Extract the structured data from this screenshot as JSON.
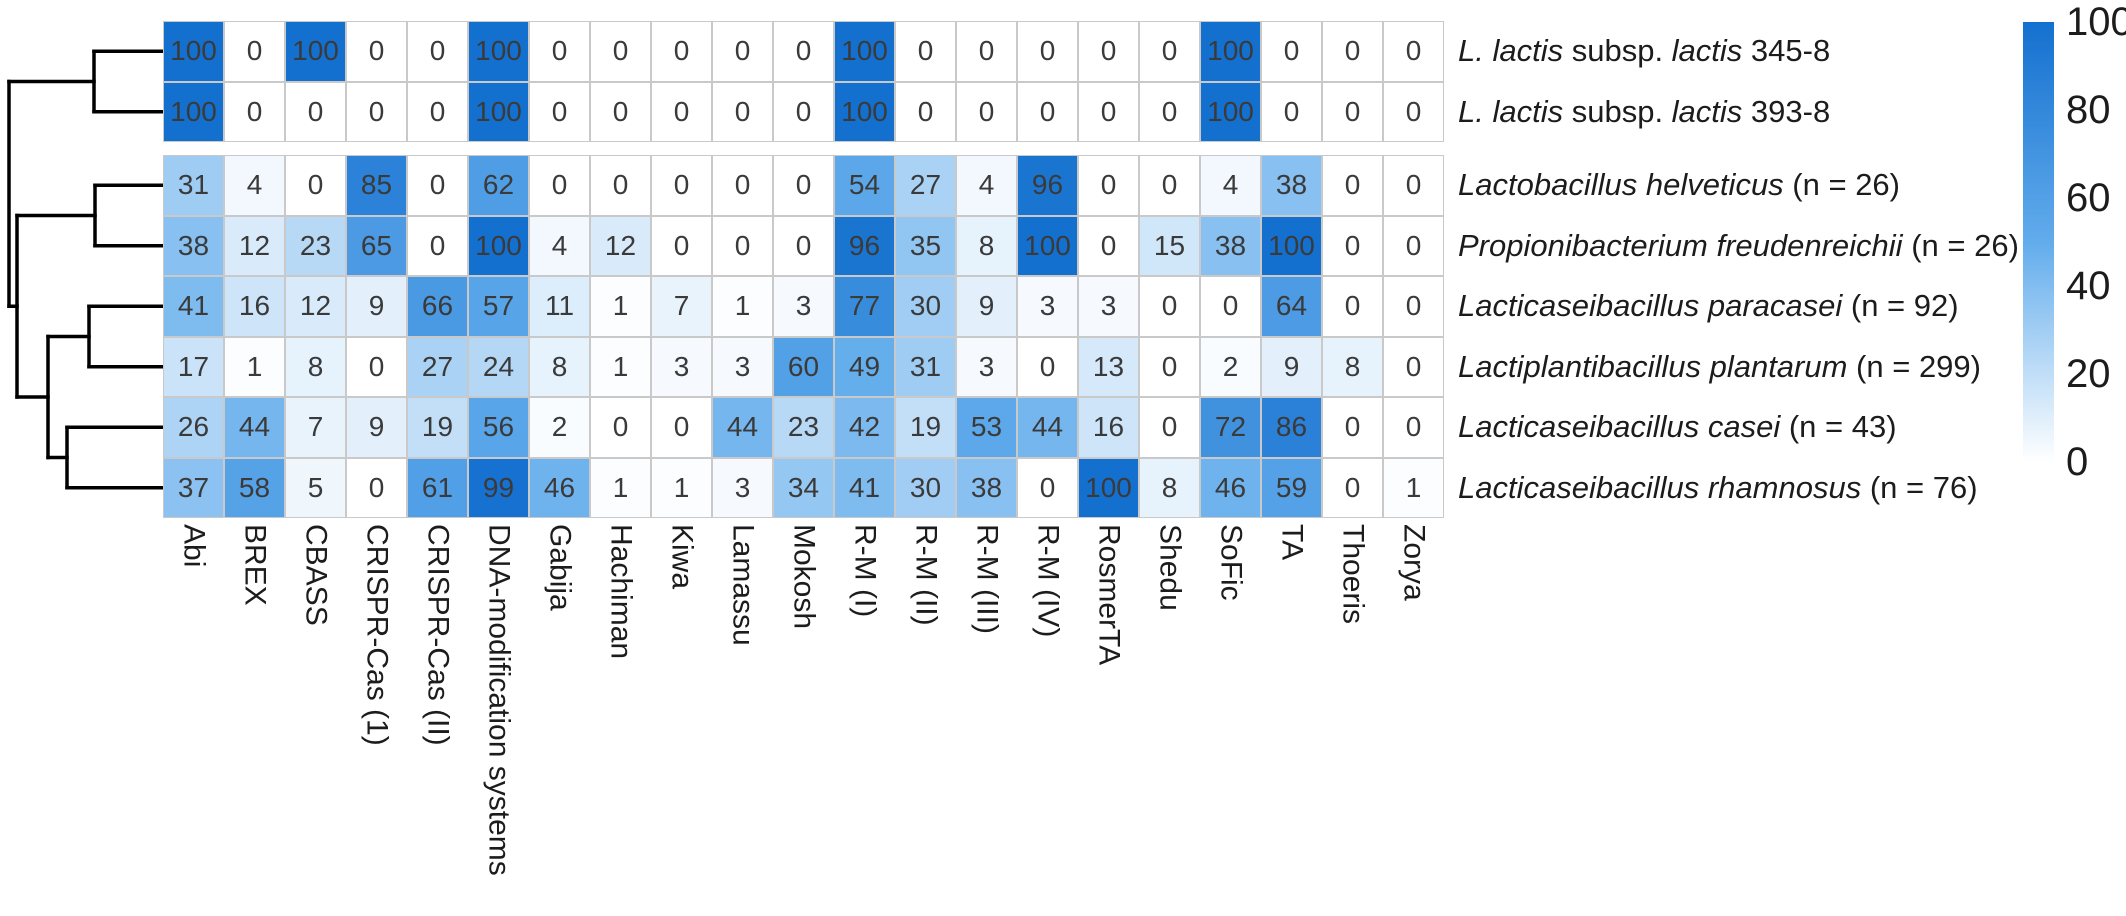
{
  "chart_data": {
    "type": "heatmap",
    "title": "",
    "legend": {
      "position": "right",
      "ticks": [
        100,
        80,
        60,
        40,
        20,
        0
      ],
      "min": 0,
      "max": 100
    },
    "colorscale": {
      "min": 0,
      "max": 100,
      "stops": [
        {
          "v": 0,
          "c": "#ffffff"
        },
        {
          "v": 50,
          "c": "#62acec"
        },
        {
          "v": 100,
          "c": "#1470cf"
        }
      ]
    },
    "columns": [
      "Abi",
      "BREX",
      "CBASS",
      "CRISPR-Cas (1)",
      "CRISPR-Cas (II)",
      "DNA-modification systems",
      "Gabija",
      "Hachiman",
      "Kiwa",
      "Lamassu",
      "Mokosh",
      "R-M (I)",
      "R-M (II)",
      "R-M (III)",
      "R-M (IV)",
      "RosmerTA",
      "Shedu",
      "SoFic",
      "TA",
      "Thoeris",
      "Zorya"
    ],
    "rows": [
      {
        "group": 0,
        "label_segments": [
          {
            "t": "L. lactis",
            "i": true
          },
          {
            "t": " subsp. ",
            "i": false
          },
          {
            "t": "lactis",
            "i": true
          },
          {
            "t": " 345-8",
            "i": false
          }
        ],
        "values": [
          100,
          0,
          100,
          0,
          0,
          100,
          0,
          0,
          0,
          0,
          0,
          100,
          0,
          0,
          0,
          0,
          0,
          100,
          0,
          0,
          0
        ]
      },
      {
        "group": 0,
        "label_segments": [
          {
            "t": "L. lactis",
            "i": true
          },
          {
            "t": " subsp. ",
            "i": false
          },
          {
            "t": "lactis",
            "i": true
          },
          {
            "t": " 393-8",
            "i": false
          }
        ],
        "values": [
          100,
          0,
          0,
          0,
          0,
          100,
          0,
          0,
          0,
          0,
          0,
          100,
          0,
          0,
          0,
          0,
          0,
          100,
          0,
          0,
          0
        ]
      },
      {
        "group": 1,
        "label_segments": [
          {
            "t": "Lactobacillus helveticus",
            "i": true
          },
          {
            "t": " (n = 26)",
            "i": false
          }
        ],
        "values": [
          31,
          4,
          0,
          85,
          0,
          62,
          0,
          0,
          0,
          0,
          0,
          54,
          27,
          4,
          96,
          0,
          0,
          4,
          38,
          0,
          0
        ]
      },
      {
        "group": 1,
        "label_segments": [
          {
            "t": "Propionibacterium freudenreichii",
            "i": true
          },
          {
            "t": " (n = 26)",
            "i": false
          }
        ],
        "values": [
          38,
          12,
          23,
          65,
          0,
          100,
          4,
          12,
          0,
          0,
          0,
          96,
          35,
          8,
          100,
          0,
          15,
          38,
          100,
          0,
          0
        ]
      },
      {
        "group": 1,
        "label_segments": [
          {
            "t": "Lacticaseibacillus paracasei",
            "i": true
          },
          {
            "t": " (n = 92)",
            "i": false
          }
        ],
        "values": [
          41,
          16,
          12,
          9,
          66,
          57,
          11,
          1,
          7,
          1,
          3,
          77,
          30,
          9,
          3,
          3,
          0,
          0,
          64,
          0,
          0
        ]
      },
      {
        "group": 1,
        "label_segments": [
          {
            "t": "Lactiplantibacillus plantarum",
            "i": true
          },
          {
            "t": " (n = 299)",
            "i": false
          }
        ],
        "values": [
          17,
          1,
          8,
          0,
          27,
          24,
          8,
          1,
          3,
          3,
          60,
          49,
          31,
          3,
          0,
          13,
          0,
          2,
          9,
          8,
          0
        ]
      },
      {
        "group": 1,
        "label_segments": [
          {
            "t": "Lacticaseibacillus casei",
            "i": true
          },
          {
            "t": " (n = 43)",
            "i": false
          }
        ],
        "values": [
          26,
          44,
          7,
          9,
          19,
          56,
          2,
          0,
          0,
          44,
          23,
          42,
          19,
          53,
          44,
          16,
          0,
          72,
          86,
          0,
          0
        ]
      },
      {
        "group": 1,
        "label_segments": [
          {
            "t": "Lacticaseibacillus rhamnosus",
            "i": true
          },
          {
            "t": " (n = 76)",
            "i": false
          }
        ],
        "values": [
          37,
          58,
          5,
          0,
          61,
          99,
          46,
          1,
          1,
          3,
          34,
          41,
          30,
          38,
          0,
          100,
          8,
          46,
          59,
          0,
          1
        ]
      }
    ],
    "dendrogram": {
      "side": "left",
      "tree": {
        "x": 9,
        "children": [
          {
            "x": 94,
            "children": [
              {
                "leaf": 0
              },
              {
                "leaf": 1
              }
            ]
          },
          {
            "x": 17,
            "children": [
              {
                "x": 95,
                "children": [
                  {
                    "leaf": 2
                  },
                  {
                    "leaf": 3
                  }
                ]
              },
              {
                "x": 48,
                "children": [
                  {
                    "x": 89,
                    "children": [
                      {
                        "leaf": 4
                      },
                      {
                        "leaf": 5
                      }
                    ]
                  },
                  {
                    "x": 67,
                    "children": [
                      {
                        "leaf": 6
                      },
                      {
                        "leaf": 7
                      }
                    ]
                  }
                ]
              }
            ]
          }
        ]
      }
    }
  }
}
